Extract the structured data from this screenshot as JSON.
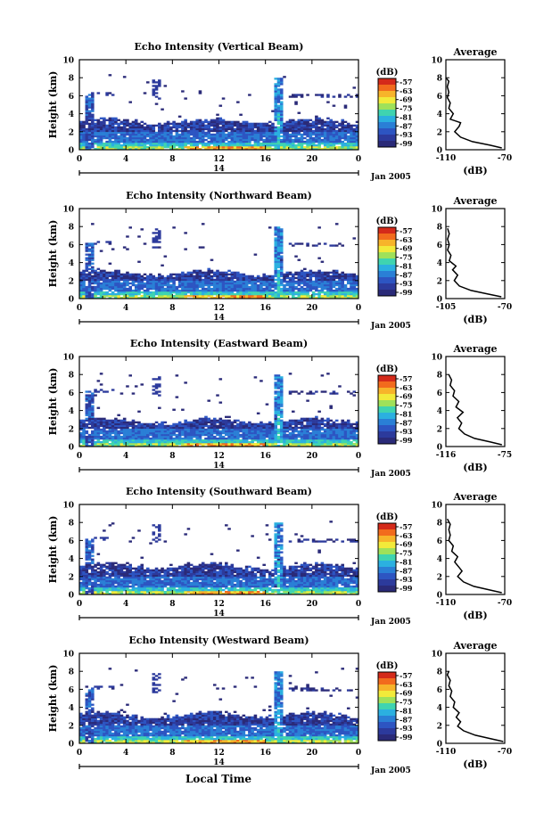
{
  "figure": {
    "common_xlabel": "Local Time",
    "date_label": "Jan 2005",
    "day_label": "14",
    "colorbar_unit": "(dB)",
    "colorbar_ticks": [
      "-57",
      "-63",
      "-69",
      "-75",
      "-81",
      "-87",
      "-93",
      "-99"
    ],
    "colorbar_colors": [
      "#d42a1a",
      "#f26b1d",
      "#f7b42a",
      "#f2ea3a",
      "#9fe15a",
      "#3fd4b0",
      "#2bb0e0",
      "#2a7fd6",
      "#2d55c2",
      "#2c3a9c",
      "#2a2a78"
    ],
    "average_title": "Average",
    "average_xlabel": "(dB)"
  },
  "chart_data": [
    {
      "type": "heatmap",
      "title": "Echo Intensity (Vertical Beam)",
      "ylabel": "Height (km)",
      "xlabel": "",
      "x_ticks": [
        "0",
        "4",
        "8",
        "12",
        "16",
        "20",
        "0"
      ],
      "y_ticks": [
        "0",
        "2",
        "4",
        "6",
        "8",
        "10"
      ],
      "xlim": [
        0,
        24
      ],
      "ylim": [
        0,
        10
      ],
      "profile": {
        "title": "Average",
        "xlabel": "(dB)",
        "x_ticks": [
          "-110",
          "-70"
        ],
        "y_ticks": [
          "0",
          "2",
          "4",
          "6",
          "8",
          "10"
        ],
        "xlim": [
          -110,
          -70
        ],
        "ylim": [
          0,
          10
        ],
        "points": [
          [
            -72,
            0.2
          ],
          [
            -80,
            0.5
          ],
          [
            -92,
            0.9
          ],
          [
            -100,
            1.4
          ],
          [
            -104,
            2.0
          ],
          [
            -101,
            2.6
          ],
          [
            -100,
            3.0
          ],
          [
            -107,
            3.4
          ],
          [
            -105,
            4.0
          ],
          [
            -108,
            4.6
          ],
          [
            -107,
            5.2
          ],
          [
            -109,
            5.8
          ],
          [
            -108,
            6.4
          ],
          [
            -109,
            7.0
          ],
          [
            -108,
            7.6
          ],
          [
            -110,
            8.0
          ]
        ]
      }
    },
    {
      "type": "heatmap",
      "title": "Echo Intensity (Northward Beam)",
      "ylabel": "Height (km)",
      "xlabel": "",
      "x_ticks": [
        "0",
        "4",
        "8",
        "12",
        "16",
        "20",
        "0"
      ],
      "y_ticks": [
        "0",
        "2",
        "4",
        "6",
        "8",
        "10"
      ],
      "xlim": [
        0,
        24
      ],
      "ylim": [
        0,
        10
      ],
      "profile": {
        "title": "Average",
        "xlabel": "(dB)",
        "x_ticks": [
          "-105",
          "-70"
        ],
        "y_ticks": [
          "0",
          "2",
          "4",
          "6",
          "8",
          "10"
        ],
        "xlim": [
          -105,
          -70
        ],
        "ylim": [
          0,
          10
        ],
        "points": [
          [
            -72,
            0.2
          ],
          [
            -80,
            0.5
          ],
          [
            -90,
            0.9
          ],
          [
            -97,
            1.4
          ],
          [
            -100,
            2.0
          ],
          [
            -98,
            2.6
          ],
          [
            -101,
            3.2
          ],
          [
            -99,
            3.6
          ],
          [
            -103,
            4.2
          ],
          [
            -102,
            4.8
          ],
          [
            -104,
            5.4
          ],
          [
            -103,
            6.0
          ],
          [
            -104,
            6.6
          ],
          [
            -103,
            7.2
          ],
          [
            -104,
            7.8
          ]
        ]
      }
    },
    {
      "type": "heatmap",
      "title": "Echo Intensity (Eastward Beam)",
      "ylabel": "Height (km)",
      "xlabel": "",
      "x_ticks": [
        "0",
        "4",
        "8",
        "12",
        "16",
        "20",
        "0"
      ],
      "y_ticks": [
        "0",
        "2",
        "4",
        "6",
        "8",
        "10"
      ],
      "xlim": [
        0,
        24
      ],
      "ylim": [
        0,
        10
      ],
      "profile": {
        "title": "Average",
        "xlabel": "(dB)",
        "x_ticks": [
          "-116",
          "-75"
        ],
        "y_ticks": [
          "0",
          "2",
          "4",
          "6",
          "8",
          "10"
        ],
        "xlim": [
          -116,
          -75
        ],
        "ylim": [
          0,
          10
        ],
        "points": [
          [
            -77,
            0.2
          ],
          [
            -85,
            0.5
          ],
          [
            -96,
            0.9
          ],
          [
            -103,
            1.4
          ],
          [
            -107,
            2.0
          ],
          [
            -105,
            2.6
          ],
          [
            -108,
            3.2
          ],
          [
            -104,
            3.8
          ],
          [
            -109,
            4.4
          ],
          [
            -107,
            5.0
          ],
          [
            -111,
            5.6
          ],
          [
            -110,
            6.2
          ],
          [
            -113,
            6.8
          ],
          [
            -112,
            7.4
          ],
          [
            -114,
            8.0
          ]
        ]
      }
    },
    {
      "type": "heatmap",
      "title": "Echo Intensity (Southward Beam)",
      "ylabel": "Height (km)",
      "xlabel": "",
      "x_ticks": [
        "0",
        "4",
        "8",
        "12",
        "16",
        "20",
        "0"
      ],
      "y_ticks": [
        "0",
        "2",
        "4",
        "6",
        "8",
        "10"
      ],
      "xlim": [
        0,
        24
      ],
      "ylim": [
        0,
        10
      ],
      "profile": {
        "title": "Average",
        "xlabel": "(dB)",
        "x_ticks": [
          "-110",
          "-70"
        ],
        "y_ticks": [
          "0",
          "2",
          "4",
          "6",
          "8",
          "10"
        ],
        "xlim": [
          -110,
          -70
        ],
        "ylim": [
          0,
          10
        ],
        "points": [
          [
            -72,
            0.2
          ],
          [
            -80,
            0.5
          ],
          [
            -91,
            0.9
          ],
          [
            -98,
            1.4
          ],
          [
            -102,
            2.0
          ],
          [
            -99,
            2.6
          ],
          [
            -101,
            3.0
          ],
          [
            -104,
            3.6
          ],
          [
            -102,
            4.2
          ],
          [
            -106,
            4.8
          ],
          [
            -105,
            5.4
          ],
          [
            -108,
            6.0
          ],
          [
            -107,
            6.6
          ],
          [
            -108,
            7.2
          ],
          [
            -107,
            7.8
          ],
          [
            -109,
            8.4
          ]
        ]
      }
    },
    {
      "type": "heatmap",
      "title": "Echo Intensity (Westward Beam)",
      "ylabel": "Height (km)",
      "xlabel": "",
      "x_ticks": [
        "0",
        "4",
        "8",
        "12",
        "16",
        "20",
        "0"
      ],
      "y_ticks": [
        "0",
        "2",
        "4",
        "6",
        "8",
        "10"
      ],
      "xlim": [
        0,
        24
      ],
      "ylim": [
        0,
        10
      ],
      "profile": {
        "title": "Average",
        "xlabel": "(dB)",
        "x_ticks": [
          "-110",
          "-70"
        ],
        "y_ticks": [
          "0",
          "2",
          "4",
          "6",
          "8",
          "10"
        ],
        "xlim": [
          -110,
          -70
        ],
        "ylim": [
          0,
          10
        ],
        "points": [
          [
            -71,
            0.2
          ],
          [
            -79,
            0.5
          ],
          [
            -90,
            0.9
          ],
          [
            -98,
            1.4
          ],
          [
            -102,
            1.9
          ],
          [
            -100,
            2.4
          ],
          [
            -103,
            2.9
          ],
          [
            -101,
            3.4
          ],
          [
            -105,
            4.0
          ],
          [
            -104,
            4.6
          ],
          [
            -107,
            5.2
          ],
          [
            -106,
            5.8
          ],
          [
            -108,
            6.4
          ],
          [
            -107,
            7.0
          ],
          [
            -109,
            7.6
          ],
          [
            -108,
            8.0
          ]
        ]
      }
    }
  ]
}
